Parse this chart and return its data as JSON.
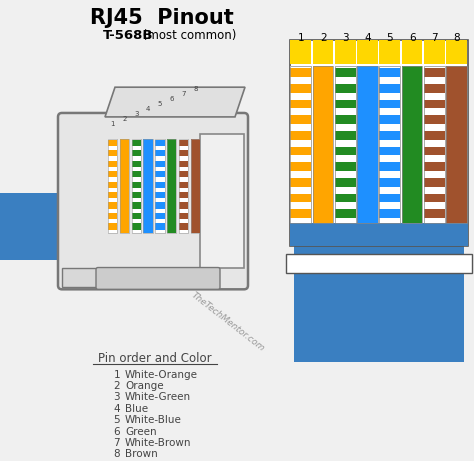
{
  "title_bold": "RJ45  Pinout",
  "subtitle_bold": "T-568B",
  "subtitle_regular": " (most common)",
  "bg_color": "#f0f0f0",
  "pin_labels": [
    "1",
    "2",
    "3",
    "4",
    "5",
    "6",
    "7",
    "8"
  ],
  "pin_colors": [
    {
      "main": "#FFA500",
      "stripe": true,
      "name": "White-Orange"
    },
    {
      "main": "#FFA500",
      "stripe": false,
      "name": "Orange"
    },
    {
      "main": "#228B22",
      "stripe": true,
      "name": "White-Green"
    },
    {
      "main": "#1E90FF",
      "stripe": false,
      "name": "Blue"
    },
    {
      "main": "#1E90FF",
      "stripe": true,
      "name": "White-Blue"
    },
    {
      "main": "#228B22",
      "stripe": false,
      "name": "Green"
    },
    {
      "main": "#A0522D",
      "stripe": true,
      "name": "White-Brown"
    },
    {
      "main": "#A0522D",
      "stripe": false,
      "name": "Brown"
    }
  ],
  "cable_blue": "#3a7fc1",
  "watermark": "TheTechMentor.com",
  "legend_title": "Pin order and Color",
  "legend_entries": [
    [
      "1",
      "White-Orange"
    ],
    [
      "2",
      "Orange"
    ],
    [
      "3",
      "White-Green"
    ],
    [
      "4",
      "Blue"
    ],
    [
      "5",
      "White-Blue"
    ],
    [
      "6",
      "Green"
    ],
    [
      "7",
      "White-Brown"
    ],
    [
      "8",
      "Brown"
    ]
  ]
}
